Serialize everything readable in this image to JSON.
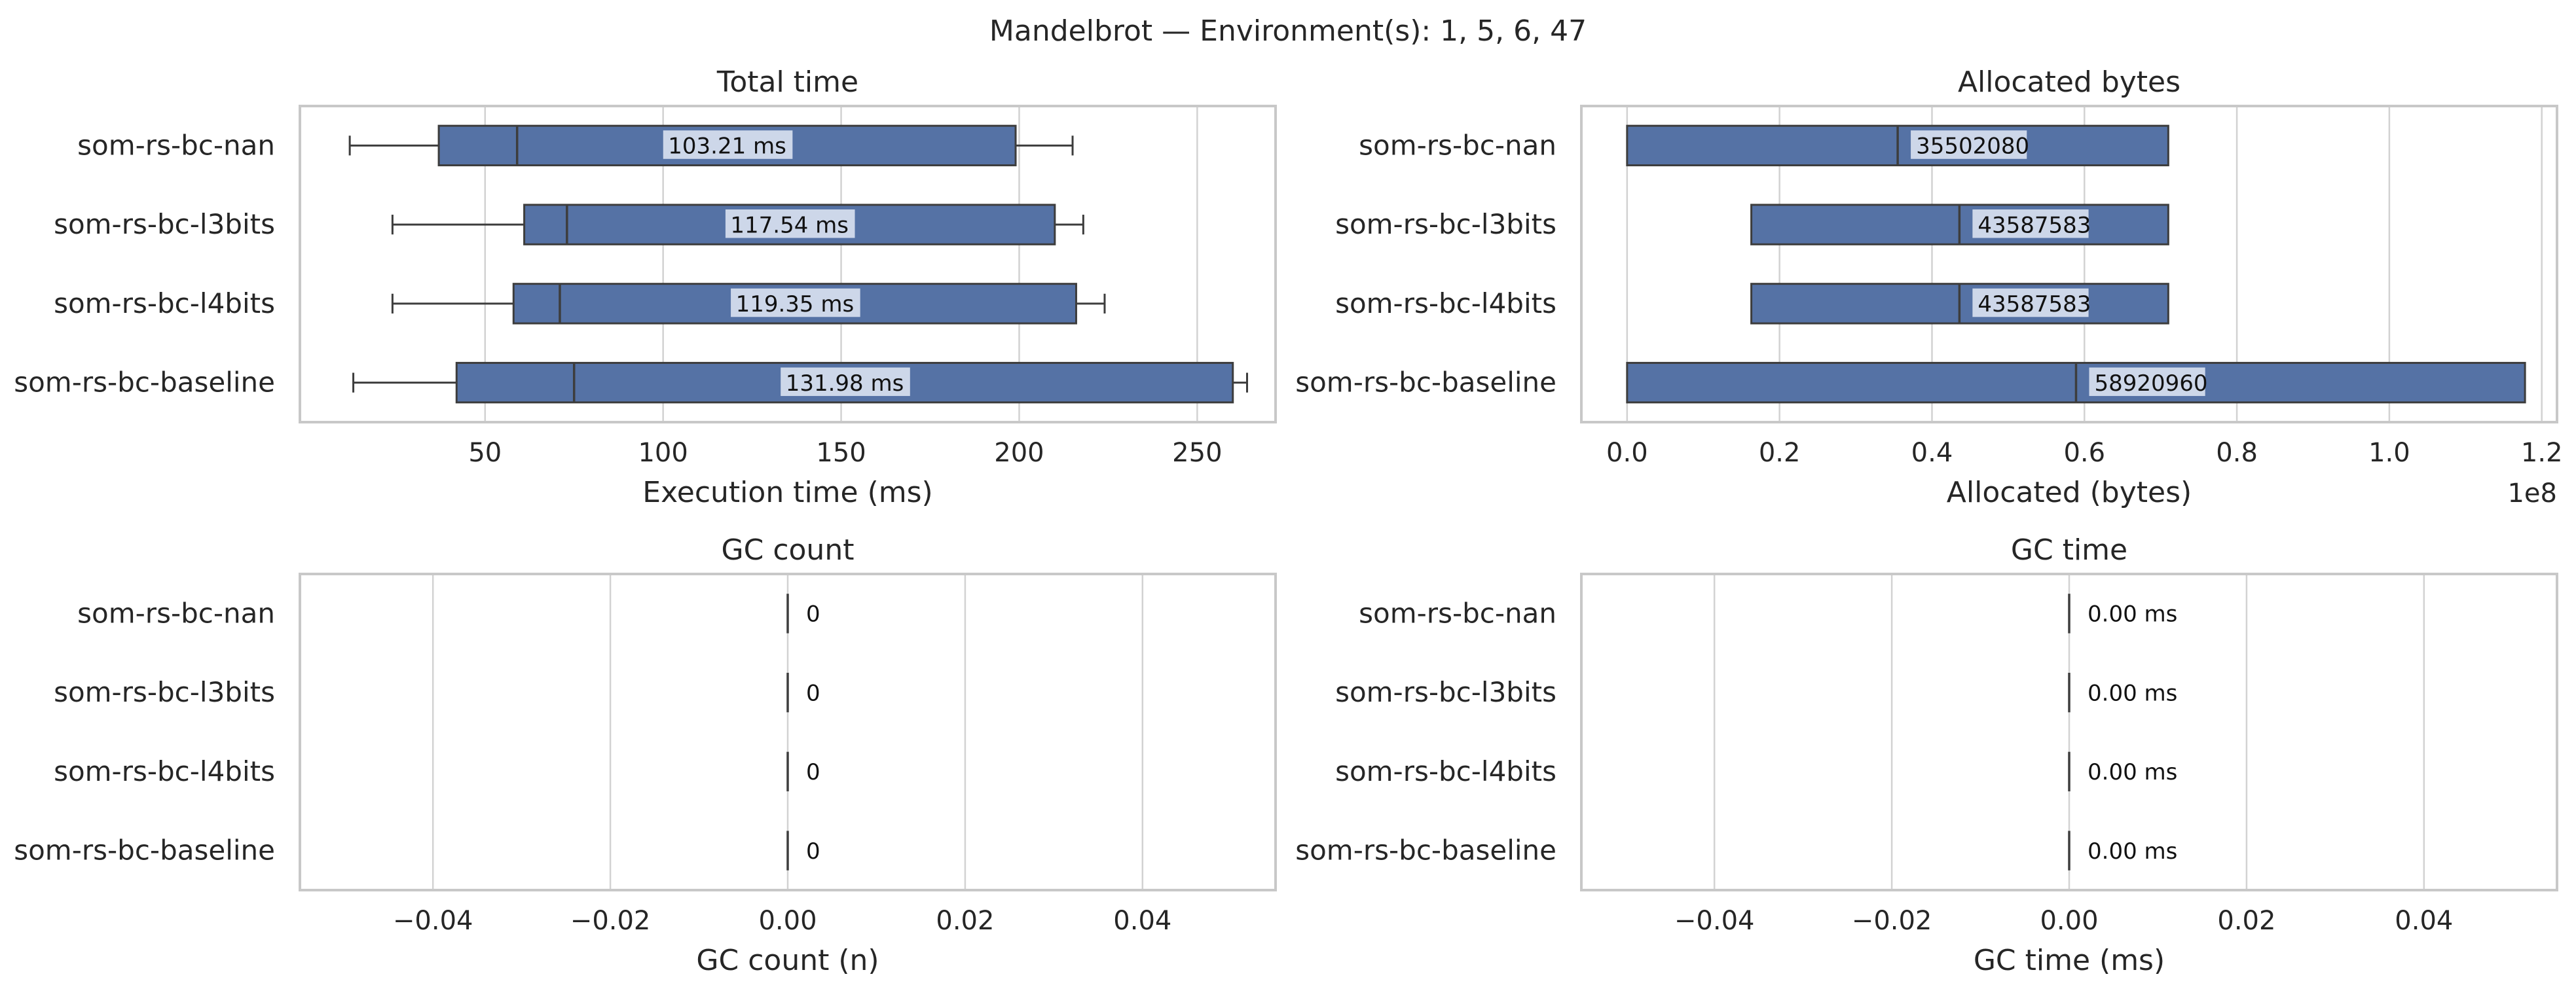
{
  "figure": {
    "suptitle": "Mandelbrot — Environment(s): 1, 5, 6, 47"
  },
  "colors": {
    "box_fill": "#5572a5",
    "box_edge": "#3d3d3d",
    "grid": "#d2d2d2",
    "frame": "#c8c8c8",
    "label_bg": "#d4dcec",
    "text": "#262626"
  },
  "chart_data": [
    {
      "type": "box",
      "orientation": "horizontal",
      "title": "Total time",
      "xlabel": "Execution time (ms)",
      "xlim": [
        -2,
        272
      ],
      "xticks": [
        50,
        100,
        150,
        200,
        250
      ],
      "xtick_labels": [
        "50",
        "100",
        "150",
        "200",
        "250"
      ],
      "offset_label": "",
      "grid": true,
      "categories": [
        "som-rs-bc-nan",
        "som-rs-bc-l3bits",
        "som-rs-bc-l4bits",
        "som-rs-bc-baseline"
      ],
      "boxes": [
        {
          "whislo": 12,
          "q1": 37,
          "med": 59,
          "q3": 199,
          "whishi": 215
        },
        {
          "whislo": 24,
          "q1": 61,
          "med": 73,
          "q3": 210,
          "whishi": 218
        },
        {
          "whislo": 24,
          "q1": 58,
          "med": 71,
          "q3": 216,
          "whishi": 224
        },
        {
          "whislo": 13,
          "q1": 42,
          "med": 75,
          "q3": 260,
          "whishi": 264
        }
      ],
      "value_labels": [
        "103.21 ms",
        "117.54 ms",
        "119.35 ms",
        "131.98 ms"
      ],
      "label_anchor": "center"
    },
    {
      "type": "box",
      "orientation": "horizontal",
      "title": "Allocated bytes",
      "xlabel": "Allocated (bytes)",
      "xlim": [
        -0.06,
        1.22
      ],
      "xticks": [
        0.0,
        0.2,
        0.4,
        0.6,
        0.8,
        1.0,
        1.2
      ],
      "xtick_labels": [
        "0.0",
        "0.2",
        "0.4",
        "0.6",
        "0.8",
        "1.0",
        "1.2"
      ],
      "offset_label": "1e8",
      "grid": true,
      "categories": [
        "som-rs-bc-nan",
        "som-rs-bc-l3bits",
        "som-rs-bc-l4bits",
        "som-rs-bc-baseline"
      ],
      "boxes": [
        {
          "whislo": 0.0,
          "q1": 0.0,
          "med": 0.355,
          "q3": 0.71,
          "whishi": 0.71
        },
        {
          "whislo": 0.163,
          "q1": 0.163,
          "med": 0.436,
          "q3": 0.71,
          "whishi": 0.71
        },
        {
          "whislo": 0.163,
          "q1": 0.163,
          "med": 0.436,
          "q3": 0.71,
          "whishi": 0.71
        },
        {
          "whislo": 0.0,
          "q1": 0.0,
          "med": 0.589,
          "q3": 1.178,
          "whishi": 1.178
        }
      ],
      "value_labels": [
        "35502080",
        "43587583",
        "43587583",
        "58920960"
      ],
      "label_anchor": "median"
    },
    {
      "type": "box",
      "orientation": "horizontal",
      "title": "GC count",
      "xlabel": "GC count (n)",
      "xlim": [
        -0.055,
        0.055
      ],
      "xticks": [
        -0.04,
        -0.02,
        0.0,
        0.02,
        0.04
      ],
      "xtick_labels": [
        "−0.04",
        "−0.02",
        "0.00",
        "0.02",
        "0.04"
      ],
      "offset_label": "",
      "grid": true,
      "categories": [
        "som-rs-bc-nan",
        "som-rs-bc-l3bits",
        "som-rs-bc-l4bits",
        "som-rs-bc-baseline"
      ],
      "boxes": [
        {
          "whislo": 0,
          "q1": 0,
          "med": 0,
          "q3": 0,
          "whishi": 0
        },
        {
          "whislo": 0,
          "q1": 0,
          "med": 0,
          "q3": 0,
          "whishi": 0
        },
        {
          "whislo": 0,
          "q1": 0,
          "med": 0,
          "q3": 0,
          "whishi": 0
        },
        {
          "whislo": 0,
          "q1": 0,
          "med": 0,
          "q3": 0,
          "whishi": 0
        }
      ],
      "value_labels": [
        "0",
        "0",
        "0",
        "0"
      ],
      "label_anchor": "median"
    },
    {
      "type": "box",
      "orientation": "horizontal",
      "title": "GC time",
      "xlabel": "GC time (ms)",
      "xlim": [
        -0.055,
        0.055
      ],
      "xticks": [
        -0.04,
        -0.02,
        0.0,
        0.02,
        0.04
      ],
      "xtick_labels": [
        "−0.04",
        "−0.02",
        "0.00",
        "0.02",
        "0.04"
      ],
      "offset_label": "",
      "grid": true,
      "categories": [
        "som-rs-bc-nan",
        "som-rs-bc-l3bits",
        "som-rs-bc-l4bits",
        "som-rs-bc-baseline"
      ],
      "boxes": [
        {
          "whislo": 0,
          "q1": 0,
          "med": 0,
          "q3": 0,
          "whishi": 0
        },
        {
          "whislo": 0,
          "q1": 0,
          "med": 0,
          "q3": 0,
          "whishi": 0
        },
        {
          "whislo": 0,
          "q1": 0,
          "med": 0,
          "q3": 0,
          "whishi": 0
        },
        {
          "whislo": 0,
          "q1": 0,
          "med": 0,
          "q3": 0,
          "whishi": 0
        }
      ],
      "value_labels": [
        "0.00 ms",
        "0.00 ms",
        "0.00 ms",
        "0.00 ms"
      ],
      "label_anchor": "median"
    }
  ]
}
